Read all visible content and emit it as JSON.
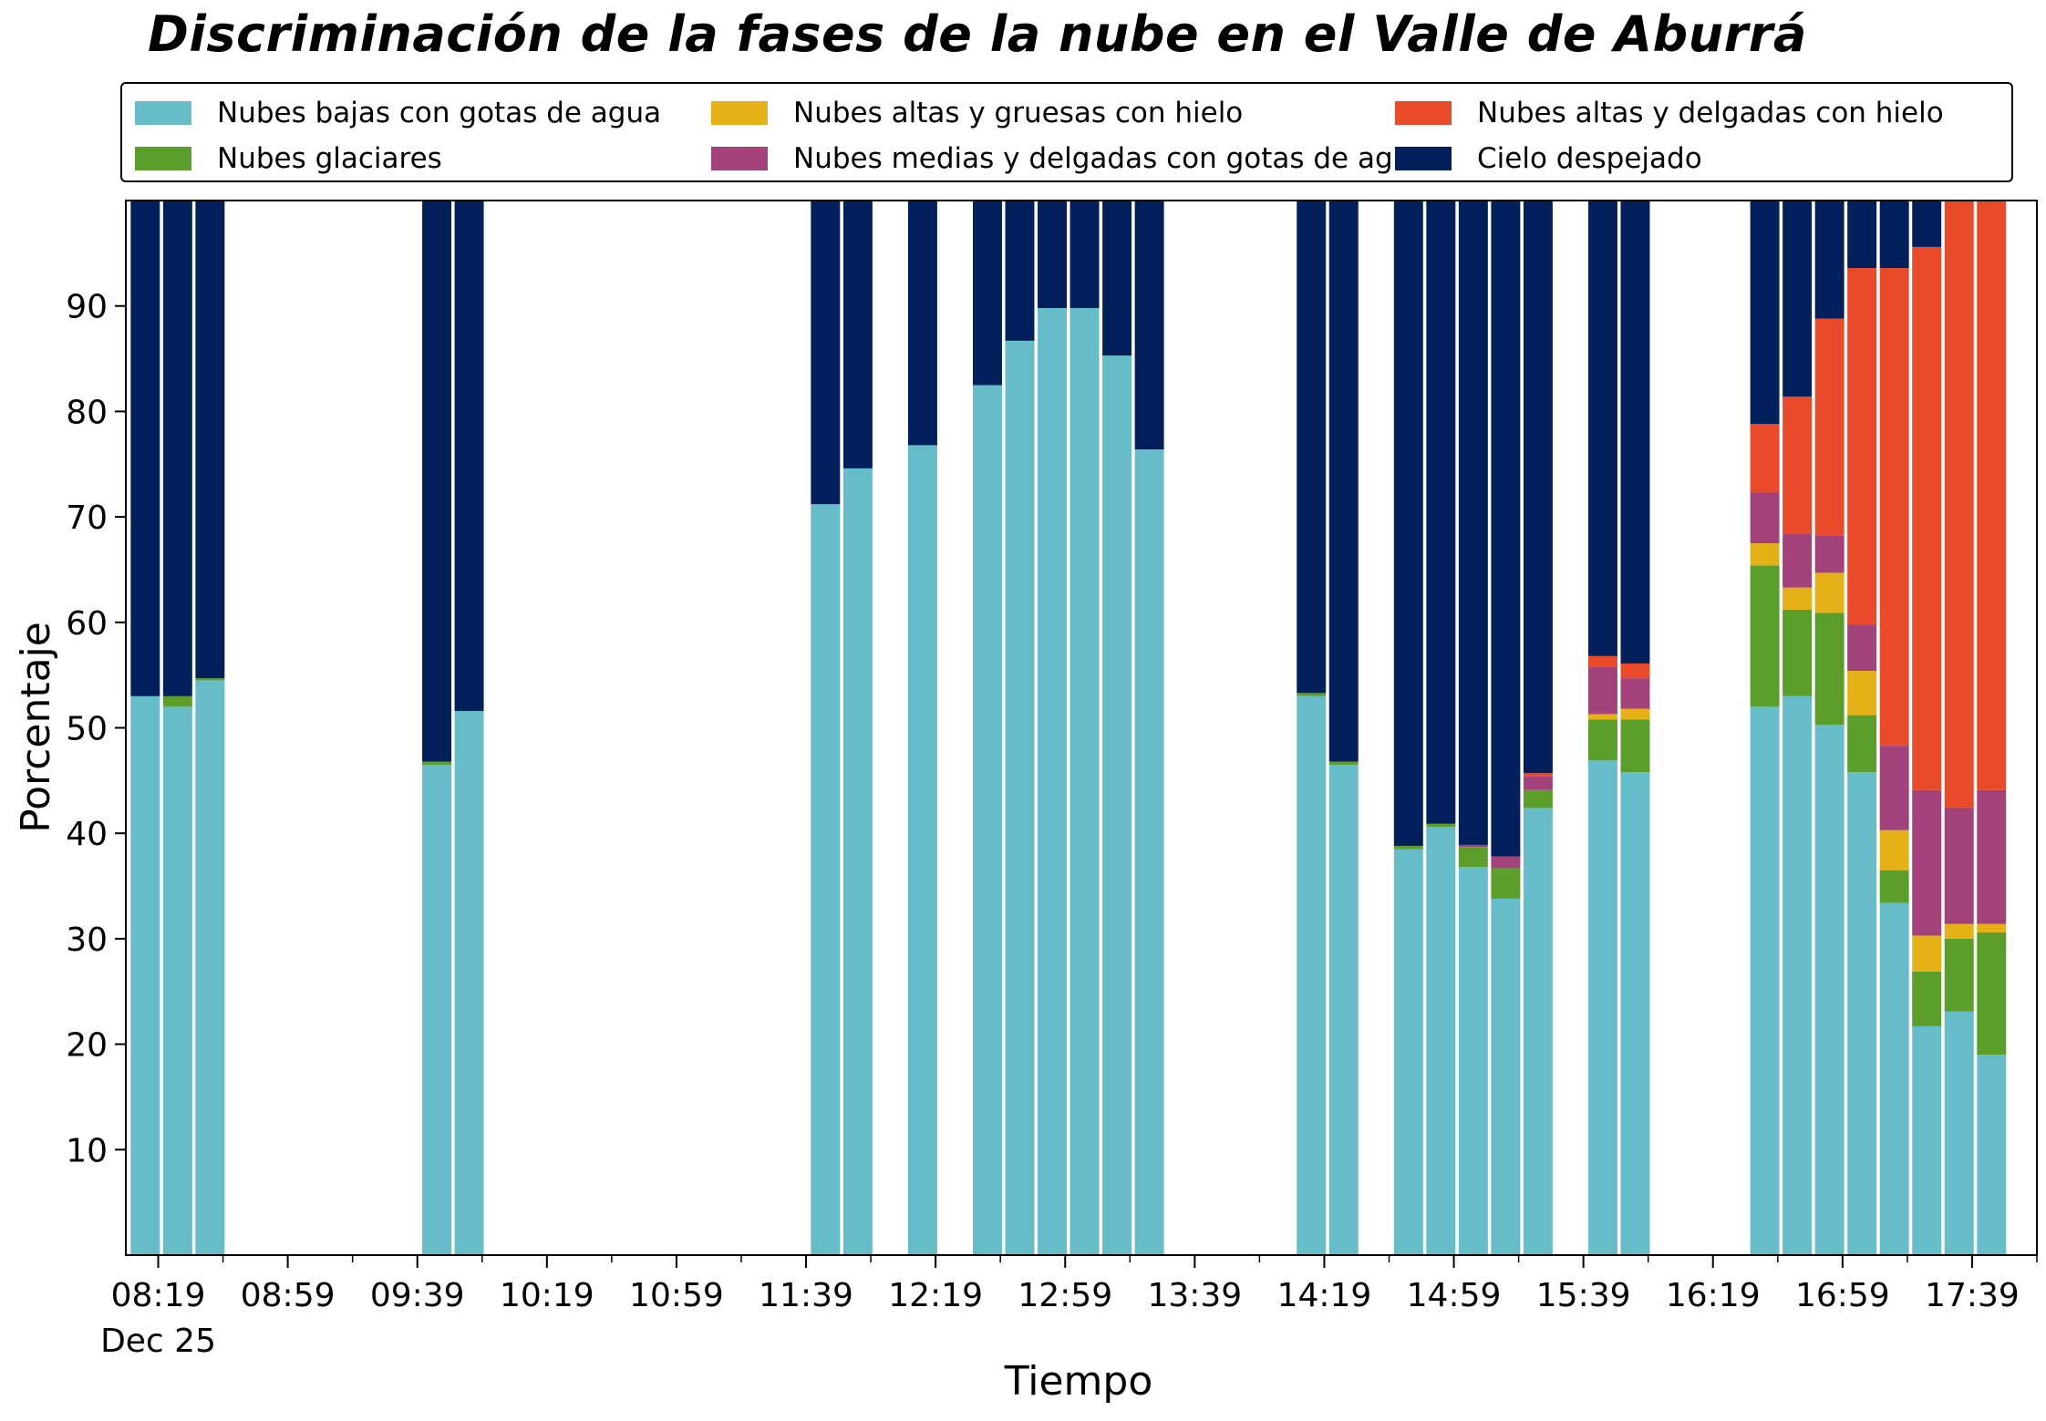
{
  "chart_data": {
    "type": "bar",
    "stacked": true,
    "title": "Discriminación de la fases de la nube en el Valle de Aburrá",
    "xlabel": "Tiempo",
    "ylabel": "Porcentaje",
    "xlim": [
      "08:09",
      "17:59"
    ],
    "ylim": [
      0,
      100
    ],
    "yticks": [
      10,
      20,
      30,
      40,
      50,
      60,
      70,
      80,
      90
    ],
    "xticks": [
      "08:19",
      "08:59",
      "09:39",
      "10:19",
      "10:59",
      "11:39",
      "12:19",
      "12:59",
      "13:39",
      "14:19",
      "14:59",
      "15:39",
      "16:19",
      "16:59",
      "17:39"
    ],
    "xtick_date": "Dec 25",
    "grid": false,
    "legend_position": "top",
    "bar_width_minutes": 9,
    "x": [
      "08:15",
      "08:25",
      "08:35",
      "09:45",
      "09:55",
      "11:45",
      "11:55",
      "12:15",
      "12:35",
      "12:45",
      "12:55",
      "13:05",
      "13:15",
      "13:25",
      "14:15",
      "14:25",
      "14:45",
      "14:55",
      "15:05",
      "15:15",
      "15:25",
      "15:45",
      "15:55",
      "16:35",
      "16:45",
      "16:55",
      "17:05",
      "17:15",
      "17:25",
      "17:35",
      "17:45"
    ],
    "series": [
      {
        "name": "Nubes bajas con gotas de agua",
        "color": "#66bdc9",
        "values": [
          53.0,
          52.0,
          54.5,
          46.5,
          51.6,
          71.2,
          74.6,
          76.8,
          82.5,
          86.7,
          89.8,
          89.8,
          85.3,
          76.4,
          53.0,
          46.5,
          38.5,
          40.6,
          36.8,
          33.8,
          42.4,
          46.9,
          45.8,
          52.0,
          53.0,
          50.3,
          45.8,
          33.4,
          21.7,
          23.1,
          19.0
        ]
      },
      {
        "name": "Nubes glaciares",
        "color": "#5b9e2a",
        "values": [
          0,
          1.0,
          0.2,
          0.3,
          0,
          0,
          0,
          0,
          0,
          0,
          0,
          0,
          0,
          0,
          0.3,
          0.3,
          0.3,
          0.3,
          1.9,
          2.9,
          1.7,
          3.9,
          5.0,
          13.4,
          8.2,
          10.6,
          5.4,
          3.1,
          5.2,
          6.9,
          11.6
        ]
      },
      {
        "name": "Nubes altas y gruesas con hielo",
        "color": "#e5b116",
        "values": [
          0,
          0,
          0,
          0,
          0,
          0,
          0,
          0,
          0,
          0,
          0,
          0,
          0,
          0,
          0,
          0,
          0,
          0,
          0,
          0,
          0,
          0.5,
          1.0,
          2.1,
          2.1,
          3.8,
          4.2,
          3.8,
          3.4,
          1.4,
          0.8
        ]
      },
      {
        "name": "Nubes medias y delgadas con gotas de agua",
        "color": "#a3417b",
        "values": [
          0,
          0,
          0,
          0,
          0,
          0,
          0,
          0,
          0,
          0,
          0,
          0,
          0,
          0,
          0,
          0,
          0,
          0,
          0.2,
          1.1,
          1.3,
          4.5,
          2.9,
          4.8,
          5.1,
          3.5,
          4.4,
          8.0,
          13.8,
          11.0,
          12.7
        ]
      },
      {
        "name": "Nubes altas y delgadas con hielo",
        "color": "#e84a2a",
        "values": [
          0,
          0,
          0,
          0,
          0,
          0,
          0,
          0,
          0,
          0,
          0,
          0,
          0,
          0,
          0,
          0,
          0,
          0,
          0,
          0,
          0.3,
          1.0,
          1.4,
          6.5,
          13.0,
          20.6,
          33.8,
          45.3,
          51.5,
          57.5,
          56.0
        ]
      },
      {
        "name": "Cielo despejado",
        "color": "#03205c",
        "values": [
          47.0,
          47.0,
          45.3,
          53.2,
          48.4,
          28.8,
          25.4,
          23.2,
          17.5,
          13.3,
          10.2,
          10.2,
          14.7,
          23.6,
          46.7,
          53.2,
          61.2,
          59.1,
          61.1,
          62.2,
          54.3,
          43.2,
          43.9,
          21.2,
          18.6,
          11.2,
          6.4,
          6.4,
          4.4,
          0.1,
          0
        ]
      }
    ]
  }
}
